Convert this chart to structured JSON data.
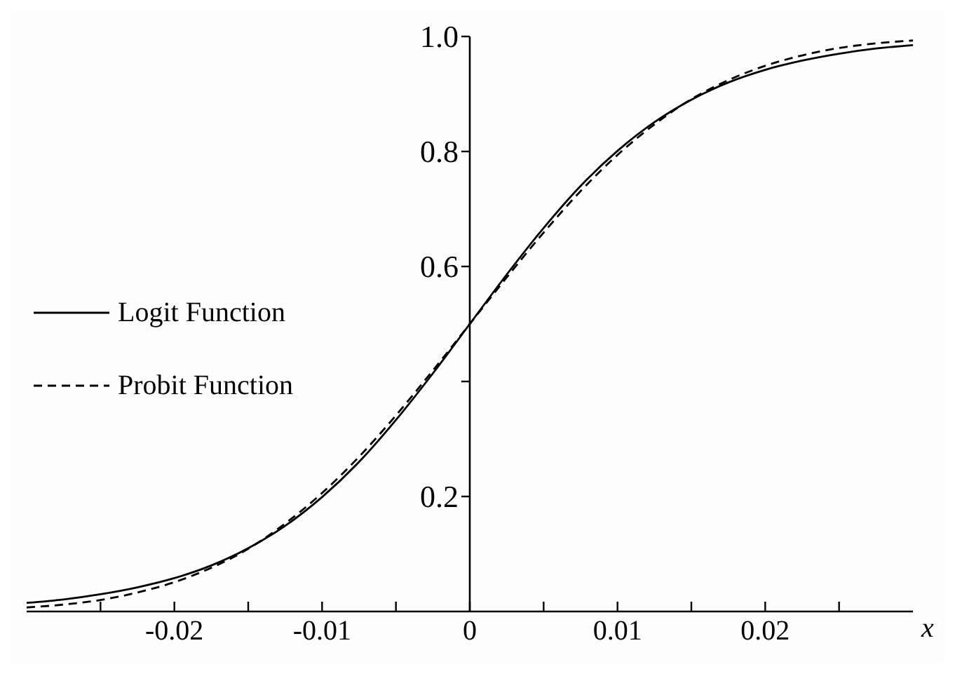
{
  "chart_data": {
    "type": "line",
    "xlabel": "x",
    "x": [
      -0.03,
      -0.0275,
      -0.025,
      -0.0225,
      -0.02,
      -0.0175,
      -0.015,
      -0.0125,
      -0.01,
      -0.0075,
      -0.005,
      -0.0025,
      0,
      0.0025,
      0.005,
      0.0075,
      0.01,
      0.0125,
      0.015,
      0.0175,
      0.02,
      0.0225,
      0.025,
      0.0275,
      0.03
    ],
    "series": [
      {
        "name": "Logit Function",
        "color": "#000000",
        "line_style": "solid",
        "values": [
          0.015,
          0.021,
          0.03,
          0.042,
          0.058,
          0.08,
          0.11,
          0.149,
          0.199,
          0.26,
          0.333,
          0.414,
          0.5,
          0.586,
          0.667,
          0.74,
          0.801,
          0.851,
          0.89,
          0.92,
          0.942,
          0.958,
          0.97,
          0.979,
          0.985
        ]
      },
      {
        "name": "Probit Function",
        "color": "#000000",
        "line_style": "dashed",
        "values": [
          0.007,
          0.012,
          0.02,
          0.033,
          0.051,
          0.076,
          0.109,
          0.153,
          0.206,
          0.269,
          0.341,
          0.419,
          0.5,
          0.581,
          0.659,
          0.731,
          0.794,
          0.847,
          0.891,
          0.924,
          0.949,
          0.967,
          0.98,
          0.988,
          0.993
        ]
      }
    ],
    "xlim": [
      -0.03,
      0.03
    ],
    "xticks": [
      {
        "value": -0.025,
        "label": null
      },
      -0.02,
      {
        "value": -0.015,
        "label": null
      },
      -0.01,
      {
        "value": -0.005,
        "label": null
      },
      0,
      {
        "value": 0.005,
        "label": null
      },
      0.01,
      {
        "value": 0.015,
        "label": null
      },
      0.02,
      {
        "value": 0.025,
        "label": null
      }
    ],
    "ylim": [
      0,
      1
    ],
    "yticks": [
      0.2,
      {
        "value": 0.4,
        "label": null
      },
      0.6,
      0.8,
      {
        "value": 1,
        "label": "1.0"
      }
    ],
    "grid": false,
    "legend": "left",
    "marker": "none"
  }
}
